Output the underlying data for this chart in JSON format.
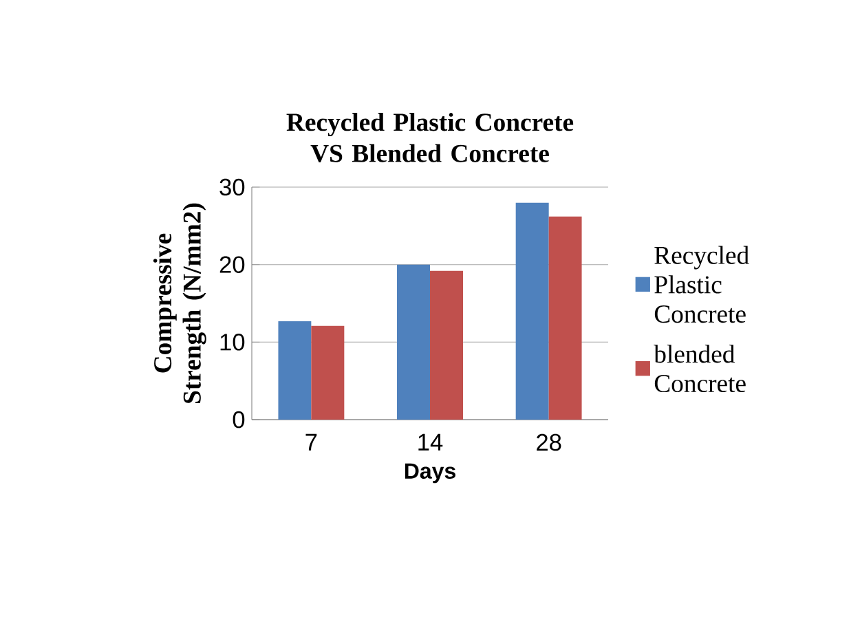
{
  "chart_data": {
    "type": "bar",
    "title": "Recycled Plastic Concrete VS Blended Concrete",
    "xlabel": "Days",
    "ylabel": "Compressive Strength (N/mm2)",
    "categories": [
      "7",
      "14",
      "28"
    ],
    "series": [
      {
        "name": "Recycled Plastic Concrete",
        "color": "#4f81bd",
        "values": [
          12.7,
          20,
          28
        ]
      },
      {
        "name": "blended Concrete",
        "color": "#c0504d",
        "values": [
          12.1,
          19.2,
          26.2
        ]
      }
    ],
    "ylim": [
      0,
      30
    ],
    "yticks": [
      0,
      10,
      20,
      30
    ],
    "grid": "y",
    "legend": "right"
  }
}
